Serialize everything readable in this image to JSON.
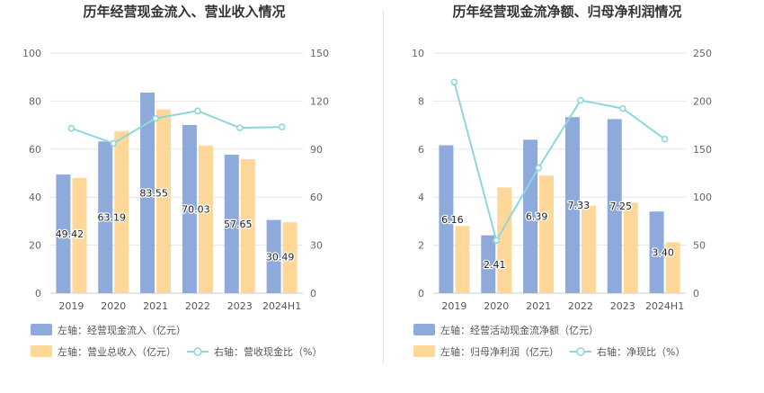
{
  "chart_data": [
    {
      "type": "bar+line",
      "title": "历年经营现金流入、营业收入情况",
      "categories": [
        "2019",
        "2020",
        "2021",
        "2022",
        "2023",
        "2024H1"
      ],
      "left_axis": {
        "ylim": [
          0,
          100
        ],
        "ticks": [
          "0",
          "20",
          "40",
          "60",
          "80",
          "100"
        ]
      },
      "right_axis": {
        "ylim": [
          0,
          150
        ],
        "ticks": [
          "0",
          "30",
          "60",
          "90",
          "120",
          "150"
        ]
      },
      "series": [
        {
          "name": "左轴：经营现金流入（亿元）",
          "kind": "bar",
          "axis": "left",
          "color": "#8eaadb",
          "values": [
            49.42,
            63.19,
            83.55,
            70.03,
            57.65,
            30.49
          ],
          "labels": [
            "49.42",
            "63.19",
            "83.55",
            "70.03",
            "57.65",
            "30.49"
          ]
        },
        {
          "name": "左轴：营业总收入（亿元）",
          "kind": "bar",
          "axis": "left",
          "color": "#ffd899",
          "values": [
            48,
            67.5,
            76.5,
            61.5,
            55.8,
            29.5
          ]
        },
        {
          "name": "右轴：营收现金比（%）",
          "kind": "line",
          "axis": "right",
          "color": "#8dd7dc",
          "values": [
            103,
            93.6,
            109.2,
            113.9,
            103.3,
            103.8
          ]
        }
      ]
    },
    {
      "type": "bar+line",
      "title": "历年经营现金流净额、归母净利润情况",
      "categories": [
        "2019",
        "2020",
        "2021",
        "2022",
        "2023",
        "2024H1"
      ],
      "left_axis": {
        "ylim": [
          0,
          10
        ],
        "ticks": [
          "0",
          "2",
          "4",
          "6",
          "8",
          "10"
        ]
      },
      "right_axis": {
        "ylim": [
          0,
          250
        ],
        "ticks": [
          "0",
          "50",
          "100",
          "150",
          "200",
          "250"
        ]
      },
      "series": [
        {
          "name": "左轴：经营活动现金流净额（亿元）",
          "kind": "bar",
          "axis": "left",
          "color": "#8eaadb",
          "values": [
            6.16,
            2.41,
            6.39,
            7.33,
            7.25,
            3.4
          ],
          "labels": [
            "6.16",
            "2.41",
            "6.39",
            "7.33",
            "7.25",
            "3.40"
          ]
        },
        {
          "name": "左轴：归母净利润（亿元）",
          "kind": "bar",
          "axis": "left",
          "color": "#ffd899",
          "values": [
            2.8,
            4.4,
            4.9,
            3.65,
            3.77,
            2.12
          ]
        },
        {
          "name": "右轴：净现比（%）",
          "kind": "line",
          "axis": "right",
          "color": "#8dd7dc",
          "values": [
            219.8,
            54.9,
            130.4,
            200.8,
            192.3,
            160.4
          ]
        }
      ]
    }
  ]
}
